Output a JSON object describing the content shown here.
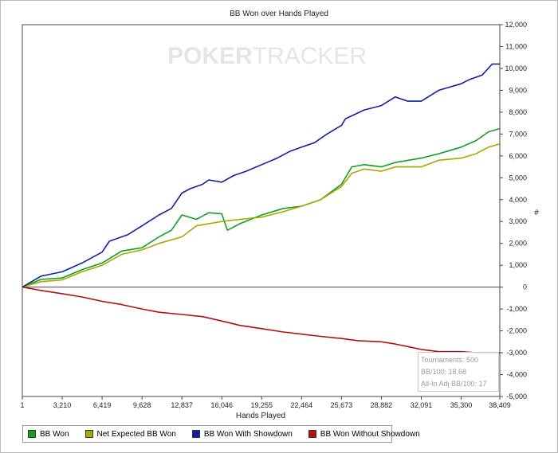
{
  "chart_data": {
    "type": "line",
    "title": "BB Won over Hands Played",
    "xlabel": "Hands Played",
    "ylabel": "#",
    "watermark": {
      "part1": "POKER",
      "part2": "TRACKER"
    },
    "xlim": [
      1,
      38409
    ],
    "ylim": [
      -5000,
      12000
    ],
    "x_ticks": [
      1,
      3210,
      6419,
      9628,
      12837,
      16046,
      19255,
      22464,
      25673,
      28882,
      32091,
      35300,
      38409
    ],
    "x_tick_labels": [
      "1",
      "3,210",
      "6,419",
      "9,628",
      "12,837",
      "16,046",
      "19,255",
      "22,464",
      "25,673",
      "28,882",
      "32,091",
      "35,300",
      "38,409"
    ],
    "y_ticks": [
      -5000,
      -4000,
      -3000,
      -2000,
      -1000,
      0,
      1000,
      2000,
      3000,
      4000,
      5000,
      6000,
      7000,
      8000,
      9000,
      10000,
      11000,
      12000
    ],
    "y_tick_labels": [
      "-5,000",
      "-4,000",
      "-3,000",
      "-2,000",
      "-1,000",
      "0",
      "1,000",
      "2,000",
      "3,000",
      "4,000",
      "5,000",
      "6,000",
      "7,000",
      "8,000",
      "9,000",
      "10,000",
      "11,000",
      "12,000"
    ],
    "grid": false,
    "legend_position": "bottom",
    "series": [
      {
        "name": "BB Won",
        "color": "#10a020",
        "x": [
          1,
          1500,
          3210,
          4800,
          6419,
          8000,
          9628,
          11000,
          12000,
          12837,
          14000,
          15000,
          16046,
          16500,
          17500,
          19255,
          21000,
          22464,
          24000,
          25673,
          26500,
          27500,
          28882,
          30000,
          32091,
          33500,
          35300,
          36500,
          37500,
          38409
        ],
        "y": [
          0,
          350,
          420,
          800,
          1100,
          1650,
          1800,
          2300,
          2600,
          3300,
          3100,
          3400,
          3350,
          2600,
          2900,
          3300,
          3600,
          3700,
          4000,
          4700,
          5500,
          5600,
          5500,
          5700,
          5900,
          6100,
          6400,
          6700,
          7100,
          7250
        ]
      },
      {
        "name": "Net Expected BB Won",
        "color": "#a8a800",
        "x": [
          1,
          1500,
          3210,
          4800,
          6419,
          8000,
          9628,
          11000,
          12837,
          14000,
          16046,
          17500,
          19255,
          21000,
          22464,
          24000,
          25673,
          26500,
          27500,
          28882,
          30000,
          32091,
          33500,
          35300,
          36500,
          37500,
          38409
        ],
        "y": [
          0,
          250,
          330,
          700,
          1000,
          1500,
          1700,
          2000,
          2300,
          2800,
          3000,
          3100,
          3200,
          3450,
          3700,
          4000,
          4600,
          5200,
          5400,
          5300,
          5500,
          5500,
          5800,
          5900,
          6100,
          6400,
          6550
        ]
      },
      {
        "name": "BB Won With Showdown",
        "color": "#1020a0",
        "x": [
          1,
          1500,
          3210,
          4800,
          6419,
          7000,
          8500,
          9628,
          11000,
          12000,
          12837,
          13500,
          14500,
          15000,
          16046,
          17000,
          18000,
          19255,
          20500,
          21500,
          22464,
          23500,
          24500,
          25673,
          26000,
          27500,
          28882,
          30000,
          31000,
          32091,
          33500,
          35300,
          36000,
          37000,
          37800,
          38409
        ],
        "y": [
          0,
          500,
          700,
          1100,
          1600,
          2100,
          2400,
          2800,
          3300,
          3600,
          4300,
          4500,
          4700,
          4900,
          4800,
          5100,
          5300,
          5600,
          5900,
          6200,
          6400,
          6600,
          7000,
          7400,
          7700,
          8100,
          8300,
          8700,
          8500,
          8500,
          9000,
          9300,
          9500,
          9700,
          10200,
          10200
        ]
      },
      {
        "name": "BB Won Without Showdown",
        "color": "#b01010",
        "x": [
          1,
          1500,
          3210,
          4800,
          6419,
          8000,
          9628,
          11000,
          12837,
          14500,
          16046,
          17500,
          19255,
          21000,
          22464,
          24000,
          25673,
          27000,
          28882,
          30000,
          32091,
          33500,
          35300,
          36500,
          38409
        ],
        "y": [
          0,
          -150,
          -300,
          -450,
          -650,
          -800,
          -1000,
          -1150,
          -1250,
          -1350,
          -1550,
          -1750,
          -1900,
          -2050,
          -2150,
          -2250,
          -2350,
          -2450,
          -2500,
          -2600,
          -2850,
          -2950,
          -2950,
          -3000,
          -3000
        ]
      }
    ],
    "annotations": {
      "tournaments": "Tournaments: 500",
      "bb_per_100": "BB/100: 18.68",
      "allin_adj": "All-In Adj BB/100: 17"
    }
  }
}
